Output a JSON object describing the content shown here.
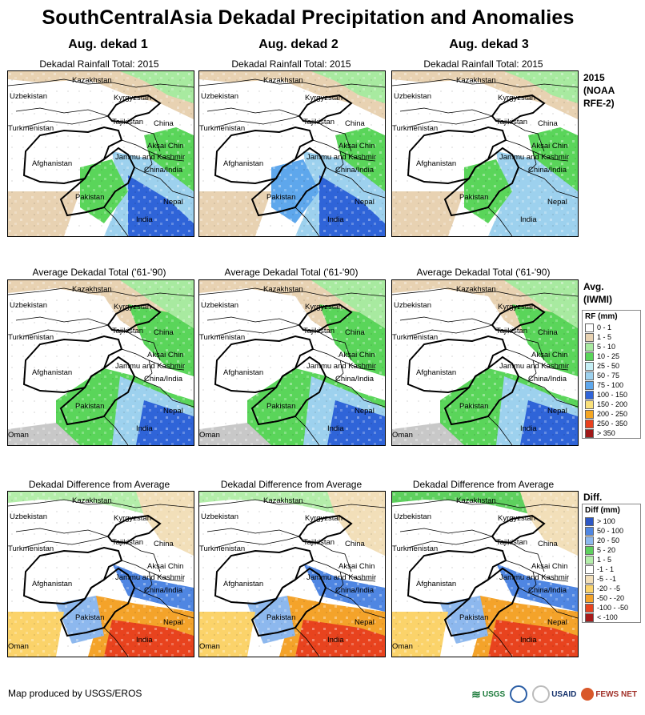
{
  "title": "SouthCentralAsia Dekadal Precipitation and Anomalies",
  "columns": [
    "Aug. dekad 1",
    "Aug. dekad 2",
    "Aug. dekad 3"
  ],
  "row_titles": [
    "Dekadal Rainfall Total: 2015",
    "Average Dekadal Total ('61-'90)",
    "Dekadal Difference from Average"
  ],
  "side_labels": {
    "row1": [
      "2015",
      "(NOAA",
      "RFE-2)"
    ],
    "row2": [
      "Avg.",
      "(IWMI)"
    ],
    "row3": [
      "Diff."
    ]
  },
  "map_labels": [
    "Kazakhstan",
    "Uzbekistan",
    "Kyrgyzstan",
    "Turkmenistan",
    "Tajikistan",
    "China",
    "Aksai Chin",
    "Jammu and Kashmir",
    "Afghanistan",
    "China/India",
    "Pakistan",
    "Nepal",
    "India",
    "Oman"
  ],
  "rf_legend": {
    "title": "RF (mm)",
    "items": [
      {
        "label": "0 - 1",
        "color": "#ffffff"
      },
      {
        "label": "1 - 5",
        "color": "#e8d2b2"
      },
      {
        "label": "5 - 10",
        "color": "#a8eaa0"
      },
      {
        "label": "10 - 25",
        "color": "#5ad55a"
      },
      {
        "label": "25 - 50",
        "color": "#c5eff5"
      },
      {
        "label": "50 - 75",
        "color": "#9dd1ee"
      },
      {
        "label": "75 - 100",
        "color": "#5ea7ec"
      },
      {
        "label": "100 - 150",
        "color": "#2f64d8"
      },
      {
        "label": "150 - 200",
        "color": "#fae07a"
      },
      {
        "label": "200 - 250",
        "color": "#f4a623"
      },
      {
        "label": "250 - 350",
        "color": "#e8411e"
      },
      {
        "label": "> 350",
        "color": "#a01818"
      }
    ]
  },
  "diff_legend": {
    "title": "Diff (mm)",
    "items": [
      {
        "label": "> 100",
        "color": "#2d57c4"
      },
      {
        "label": "50 - 100",
        "color": "#4f86e2"
      },
      {
        "label": "20 - 50",
        "color": "#8db8ee"
      },
      {
        "label": "5 - 20",
        "color": "#5ed05e"
      },
      {
        "label": "1 - 5",
        "color": "#b4eeaa"
      },
      {
        "label": "-1 - 1",
        "color": "#ffffff"
      },
      {
        "label": "-5 - -1",
        "color": "#f2dfb9"
      },
      {
        "label": "-20 - -5",
        "color": "#fbd36a"
      },
      {
        "label": "-50 - -20",
        "color": "#f4a32a"
      },
      {
        "label": "-100 - -50",
        "color": "#e8431e"
      },
      {
        "label": "< -100",
        "color": "#a71a1a"
      }
    ]
  },
  "footer": "Map produced by USGS/EROS",
  "logos": [
    "USGS",
    "USAID",
    "FEWS NET"
  ]
}
